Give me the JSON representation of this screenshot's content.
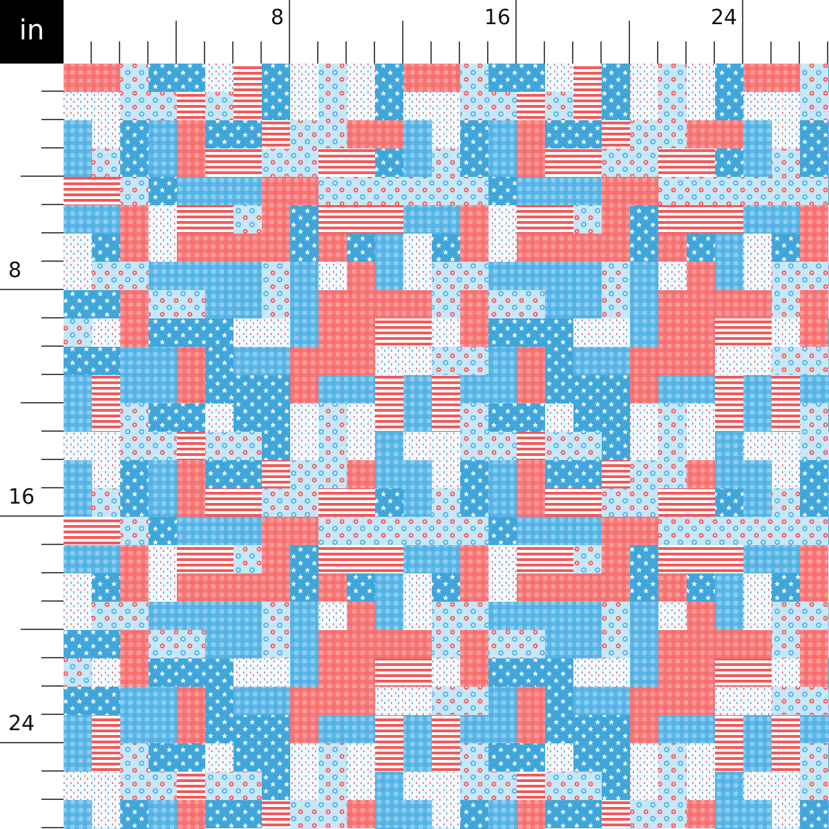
{
  "corner_label": "in",
  "top_ruler": {
    "labels": [
      "8",
      "16",
      "24"
    ]
  },
  "left_ruler": {
    "labels": [
      "8",
      "16",
      "24"
    ]
  }
}
